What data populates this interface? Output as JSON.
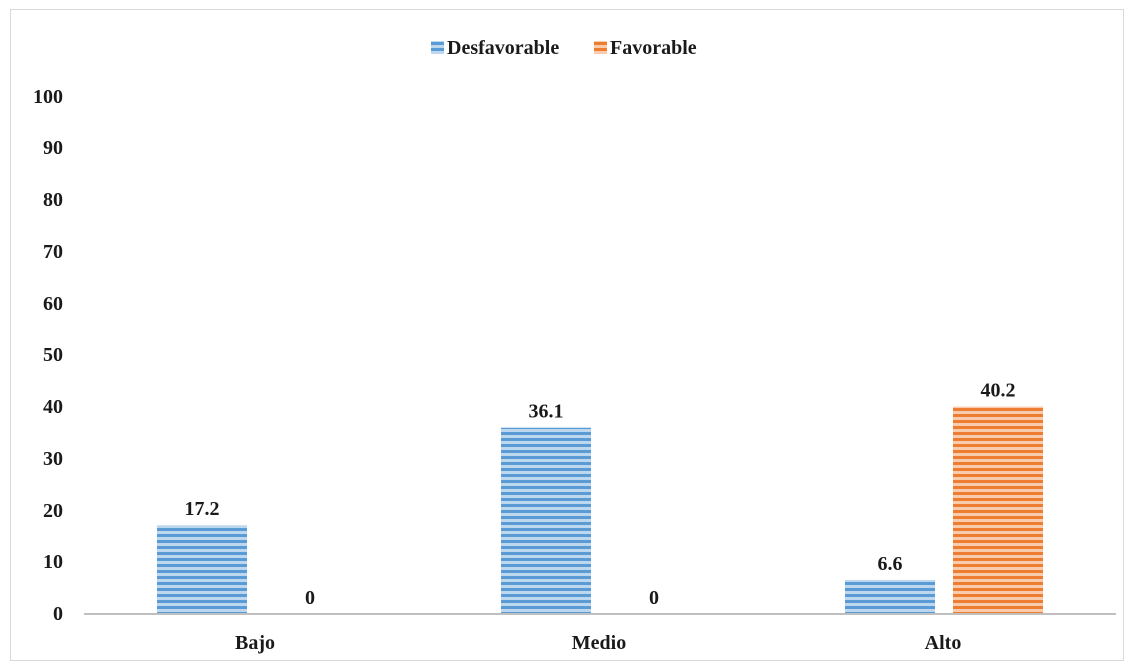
{
  "chart_data": {
    "type": "bar",
    "categories": [
      "Bajo",
      "Medio",
      "Alto"
    ],
    "series": [
      {
        "name": "Desfavorable",
        "values": [
          17.2,
          36.1,
          6.6
        ],
        "color": "#5b9bd5"
      },
      {
        "name": "Favorable",
        "values": [
          0,
          0,
          40.2
        ],
        "color": "#ed7d31"
      }
    ],
    "data_labels": [
      [
        "17.2",
        "36.1",
        "6.6"
      ],
      [
        "0",
        "0",
        "40.2"
      ]
    ],
    "yticks": [
      "0",
      "10",
      "20",
      "30",
      "40",
      "50",
      "60",
      "70",
      "80",
      "90",
      "100"
    ],
    "ylim": [
      0,
      100
    ],
    "grid": false,
    "legend": "top-center"
  }
}
